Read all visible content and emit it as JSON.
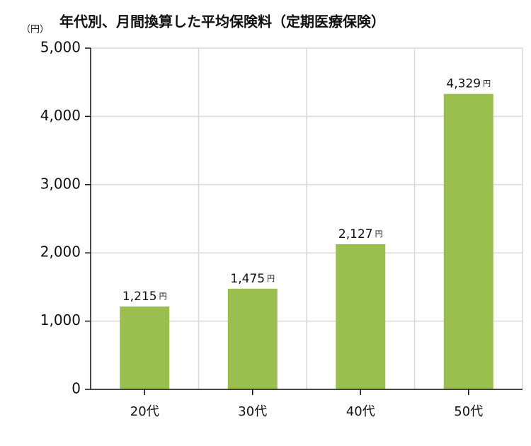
{
  "chart_data": {
    "type": "bar",
    "title": "年代別、月間換算した平均保険料（定期医療保険）",
    "y_label": "（円）",
    "categories": [
      "20代",
      "30代",
      "40代",
      "50代"
    ],
    "values": [
      1215,
      1475,
      2127,
      4329
    ],
    "value_labels": [
      "1,215",
      "1,475",
      "2,127",
      "4,329"
    ],
    "value_label_unit": "円",
    "color": "#9bbf4f",
    "ylim": [
      0,
      5000
    ],
    "yticks": [
      0,
      {
        "value": 1000,
        "label": "1,000"
      },
      {
        "value": 2000,
        "label": "2,000"
      },
      {
        "value": 3000,
        "label": "3,000"
      },
      {
        "value": 4000,
        "label": "4,000"
      },
      {
        "value": 5000,
        "label": "5,000"
      }
    ],
    "grid": true
  }
}
